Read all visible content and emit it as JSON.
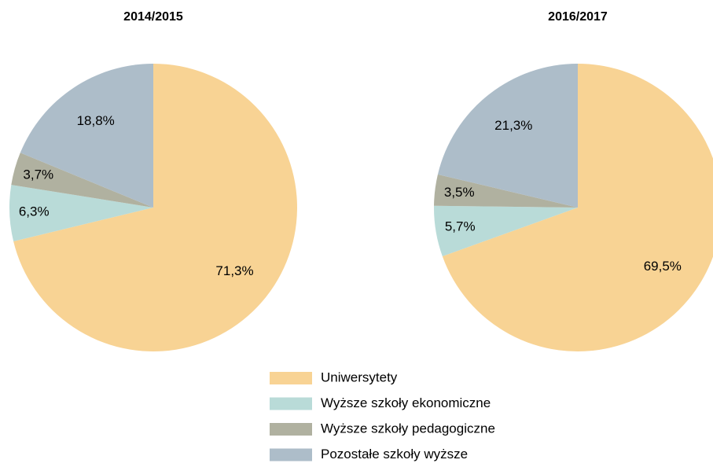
{
  "chart_data": [
    {
      "type": "pie",
      "title": "2014/2015",
      "categories": [
        "Uniwersytety",
        "Wyższe szkoły ekonomiczne",
        "Wyższe szkoły pedagogiczne",
        "Pozostałe szkoły wyższe"
      ],
      "values": [
        71.3,
        6.3,
        3.7,
        18.8
      ],
      "value_labels": [
        "71,3%",
        "6,3%",
        "3,7%",
        "18,8%"
      ],
      "colors": [
        "#f8d394",
        "#b9dbd8",
        "#b0b1a0",
        "#adbdc9"
      ]
    },
    {
      "type": "pie",
      "title": "2016/2017",
      "categories": [
        "Uniwersytety",
        "Wyższe szkoły ekonomiczne",
        "Wyższe szkoły pedagogiczne",
        "Pozostałe szkoły wyższe"
      ],
      "values": [
        69.5,
        5.7,
        3.5,
        21.3
      ],
      "value_labels": [
        "69,5%",
        "5,7%",
        "3,5%",
        "21,3%"
      ],
      "colors": [
        "#f8d394",
        "#b9dbd8",
        "#b0b1a0",
        "#adbdc9"
      ]
    }
  ]
}
